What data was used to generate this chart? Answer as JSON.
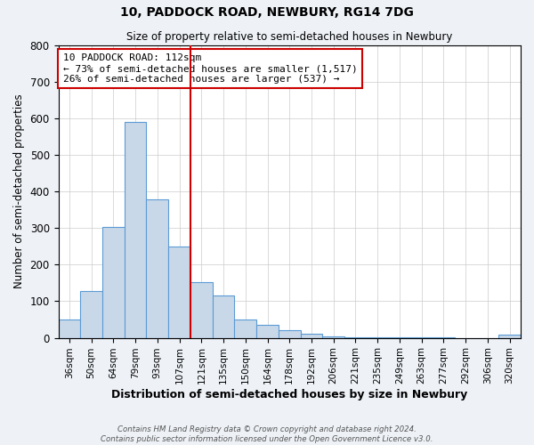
{
  "title": "10, PADDOCK ROAD, NEWBURY, RG14 7DG",
  "subtitle": "Size of property relative to semi-detached houses in Newbury",
  "xlabel": "Distribution of semi-detached houses by size in Newbury",
  "ylabel": "Number of semi-detached properties",
  "bar_labels": [
    "36sqm",
    "50sqm",
    "64sqm",
    "79sqm",
    "93sqm",
    "107sqm",
    "121sqm",
    "135sqm",
    "150sqm",
    "164sqm",
    "178sqm",
    "192sqm",
    "206sqm",
    "221sqm",
    "235sqm",
    "249sqm",
    "263sqm",
    "277sqm",
    "292sqm",
    "306sqm",
    "320sqm"
  ],
  "bar_values": [
    50,
    127,
    303,
    591,
    378,
    250,
    152,
    116,
    50,
    35,
    20,
    10,
    5,
    2,
    1,
    1,
    1,
    1,
    0,
    0,
    8
  ],
  "bar_color": "#c8d8e8",
  "bar_edge_color": "#5b9bd5",
  "property_line_x": 5.5,
  "property_label": "10 PADDOCK ROAD: 112sqm",
  "annotation_line1": "← 73% of semi-detached houses are smaller (1,517)",
  "annotation_line2": "26% of semi-detached houses are larger (537) →",
  "annotation_box_color": "#cc0000",
  "vline_color": "#cc0000",
  "ylim": [
    0,
    800
  ],
  "yticks": [
    0,
    100,
    200,
    300,
    400,
    500,
    600,
    700,
    800
  ],
  "footer_line1": "Contains HM Land Registry data © Crown copyright and database right 2024.",
  "footer_line2": "Contains public sector information licensed under the Open Government Licence v3.0.",
  "background_color": "#eef2f7",
  "plot_bg_color": "#ffffff"
}
